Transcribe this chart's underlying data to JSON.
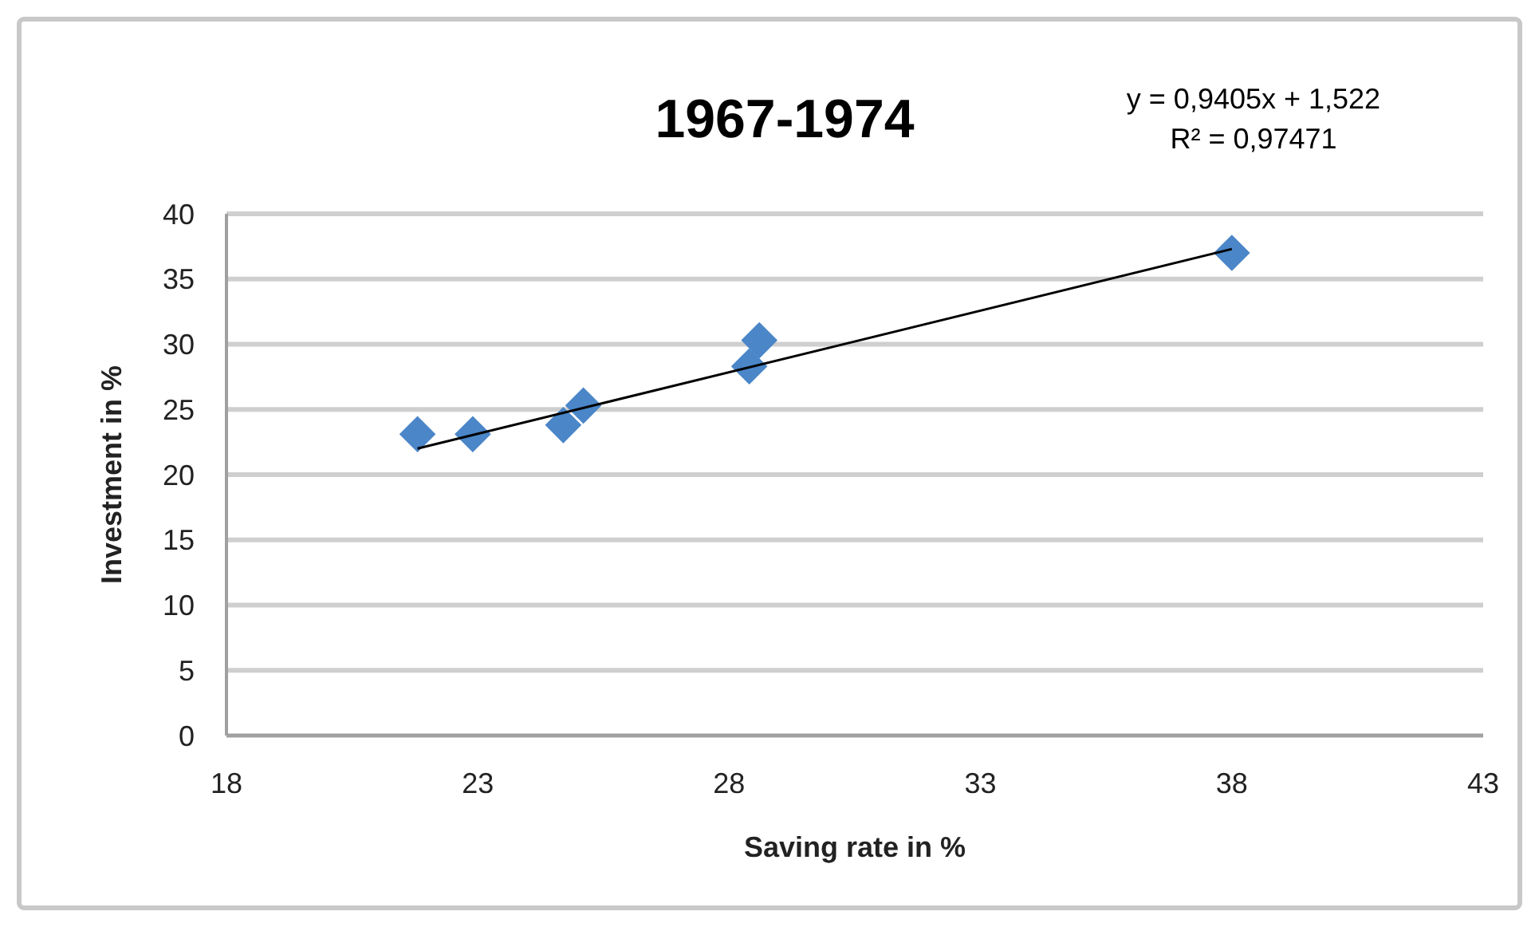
{
  "chart_data": {
    "type": "scatter",
    "title": "1967-1974",
    "xlabel": "Saving rate in %",
    "ylabel": "Investment in %",
    "annotations": [
      "y = 0,9405x + 1,522",
      "R² = 0,97471"
    ],
    "xlim": [
      18,
      43
    ],
    "xticks": [
      18,
      23,
      28,
      33,
      38,
      43
    ],
    "ylim": [
      0,
      40
    ],
    "yticks": [
      0,
      5,
      10,
      15,
      20,
      25,
      30,
      35,
      40
    ],
    "grid": "y",
    "marker": "diamond",
    "series": [
      {
        "color": "#4a86c8",
        "x": [
          21.8,
          22.9,
          24.7,
          25.1,
          28.4,
          28.6,
          38.0
        ],
        "values": [
          23.1,
          23.1,
          23.8,
          25.3,
          28.3,
          30.3,
          37.0
        ]
      },
      {
        "type": "line",
        "color": "#000000",
        "x": [
          21.8,
          38.0
        ],
        "values": [
          22.0,
          37.3
        ],
        "marker": "none",
        "line_style": "solid"
      }
    ]
  }
}
